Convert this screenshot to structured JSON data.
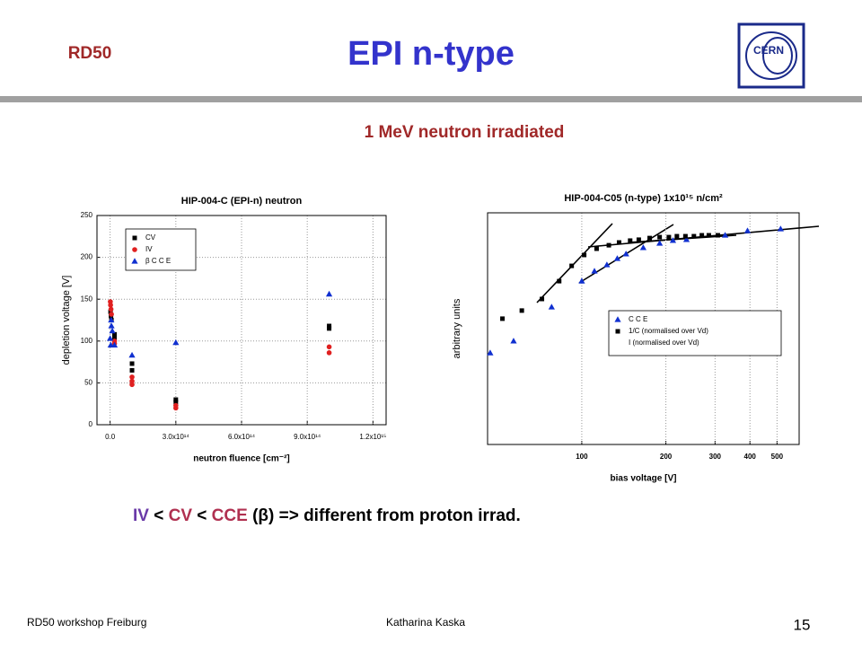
{
  "header": {
    "tag": "RD50",
    "title": "EPI n-type",
    "subtitle": "1 MeV neutron irradiated",
    "logo": "CERN"
  },
  "conclusion": [
    {
      "text": "IV",
      "color": "#6a3aa8"
    },
    {
      "text": " < ",
      "color": "#000000"
    },
    {
      "text": "CV",
      "color": "#b03050"
    },
    {
      "text": " < ",
      "color": "#000000"
    },
    {
      "text": "CCE",
      "color": "#b03050"
    },
    {
      "text": " (β) => different from proton irrad.",
      "color": "#000000"
    }
  ],
  "footer": {
    "left": "RD50 workshop Freiburg",
    "center": "Katharina Kaska",
    "page": "15"
  },
  "chart_data": [
    {
      "type": "scatter",
      "title": "HIP-004-C (EPI-n) neutron",
      "x_label": "neutron fluence [cm⁻²]",
      "y_label": "depletion voltage [V]",
      "xlim": [
        -60000000000000,
        1260000000000000
      ],
      "xticks": [
        {
          "value": 0,
          "label": "0.0"
        },
        {
          "value": 300000000000000,
          "label": "3.0x10¹⁴"
        },
        {
          "value": 600000000000000,
          "label": "6.0x10¹⁴"
        },
        {
          "value": 900000000000000,
          "label": "9.0x10¹⁴"
        },
        {
          "value": 1200000000000000,
          "label": "1.2x10¹⁵"
        }
      ],
      "ylim": [
        0,
        250
      ],
      "yticks": [
        0,
        50,
        100,
        150,
        200,
        250
      ],
      "grid": true,
      "legend": "upper left",
      "series": [
        {
          "name": "CV",
          "color": "#000000",
          "marker": "square",
          "x": [
            2000000000000,
            4000000000000,
            6000000000000,
            20000000000000,
            20000000000000,
            100000000000000,
            100000000000000,
            300000000000000,
            300000000000000,
            1000000000000000,
            1000000000000000
          ],
          "values": [
            135,
            130,
            125,
            108,
            103,
            73,
            65,
            30,
            27,
            118,
            115
          ]
        },
        {
          "name": "IV",
          "color": "#e02020",
          "marker": "circle",
          "x": [
            1000000000000,
            2000000000000,
            4000000000000,
            6000000000000,
            20000000000000,
            20000000000000,
            100000000000000,
            100000000000000,
            100000000000000,
            300000000000000,
            300000000000000,
            1000000000000000,
            1000000000000000
          ],
          "values": [
            147,
            143,
            138,
            132,
            100,
            97,
            57,
            52,
            48,
            23,
            20,
            93,
            86
          ]
        },
        {
          "name": "β C C E",
          "color": "#1030d0",
          "marker": "triangle",
          "x": [
            0,
            3000000000000,
            5000000000000,
            6000000000000,
            10000000000000,
            20000000000000,
            100000000000000,
            300000000000000,
            1000000000000000
          ],
          "values": [
            103,
            95,
            125,
            118,
            112,
            95,
            83,
            98,
            156
          ]
        }
      ]
    },
    {
      "type": "scatter",
      "title": "HIP-004-C05 (n-type) 1x10¹⁵ n/cm²",
      "x_label": "bias voltage [V]",
      "y_label": "arbitrary units",
      "xscale": "log",
      "xlim": [
        46,
        600
      ],
      "xticks": [
        100,
        200,
        300,
        400,
        500
      ],
      "ylim": [
        0,
        1
      ],
      "yticks": [],
      "grid": true,
      "legend": "center right",
      "series": [
        {
          "name": "C C E",
          "color": "#1030d0",
          "marker": "triangle",
          "x": [
            47,
            57,
            78,
            100,
            111,
            123,
            134,
            144,
            166,
            190,
            212,
            237,
            326,
            392,
            515
          ],
          "values": [
            0.395,
            0.446,
            0.593,
            0.705,
            0.748,
            0.775,
            0.802,
            0.822,
            0.849,
            0.868,
            0.88,
            0.884,
            0.903,
            0.922,
            0.93
          ]
        },
        {
          "name": "1/C (normalised over Vd)",
          "color": "#000000",
          "marker": "square",
          "x": [
            52,
            61,
            72,
            83,
            92,
            102,
            113,
            125,
            136,
            149,
            160,
            175,
            190,
            205,
            219,
            235,
            252,
            269,
            285,
            307
          ],
          "values": [
            0.543,
            0.578,
            0.628,
            0.705,
            0.771,
            0.818,
            0.845,
            0.86,
            0.872,
            0.88,
            0.884,
            0.891,
            0.895,
            0.895,
            0.899,
            0.899,
            0.899,
            0.903,
            0.903,
            0.903
          ]
        },
        {
          "name": "I (normalised over Vd)",
          "color": "#e02020",
          "marker": "none",
          "x": [],
          "values": []
        }
      ]
    }
  ]
}
